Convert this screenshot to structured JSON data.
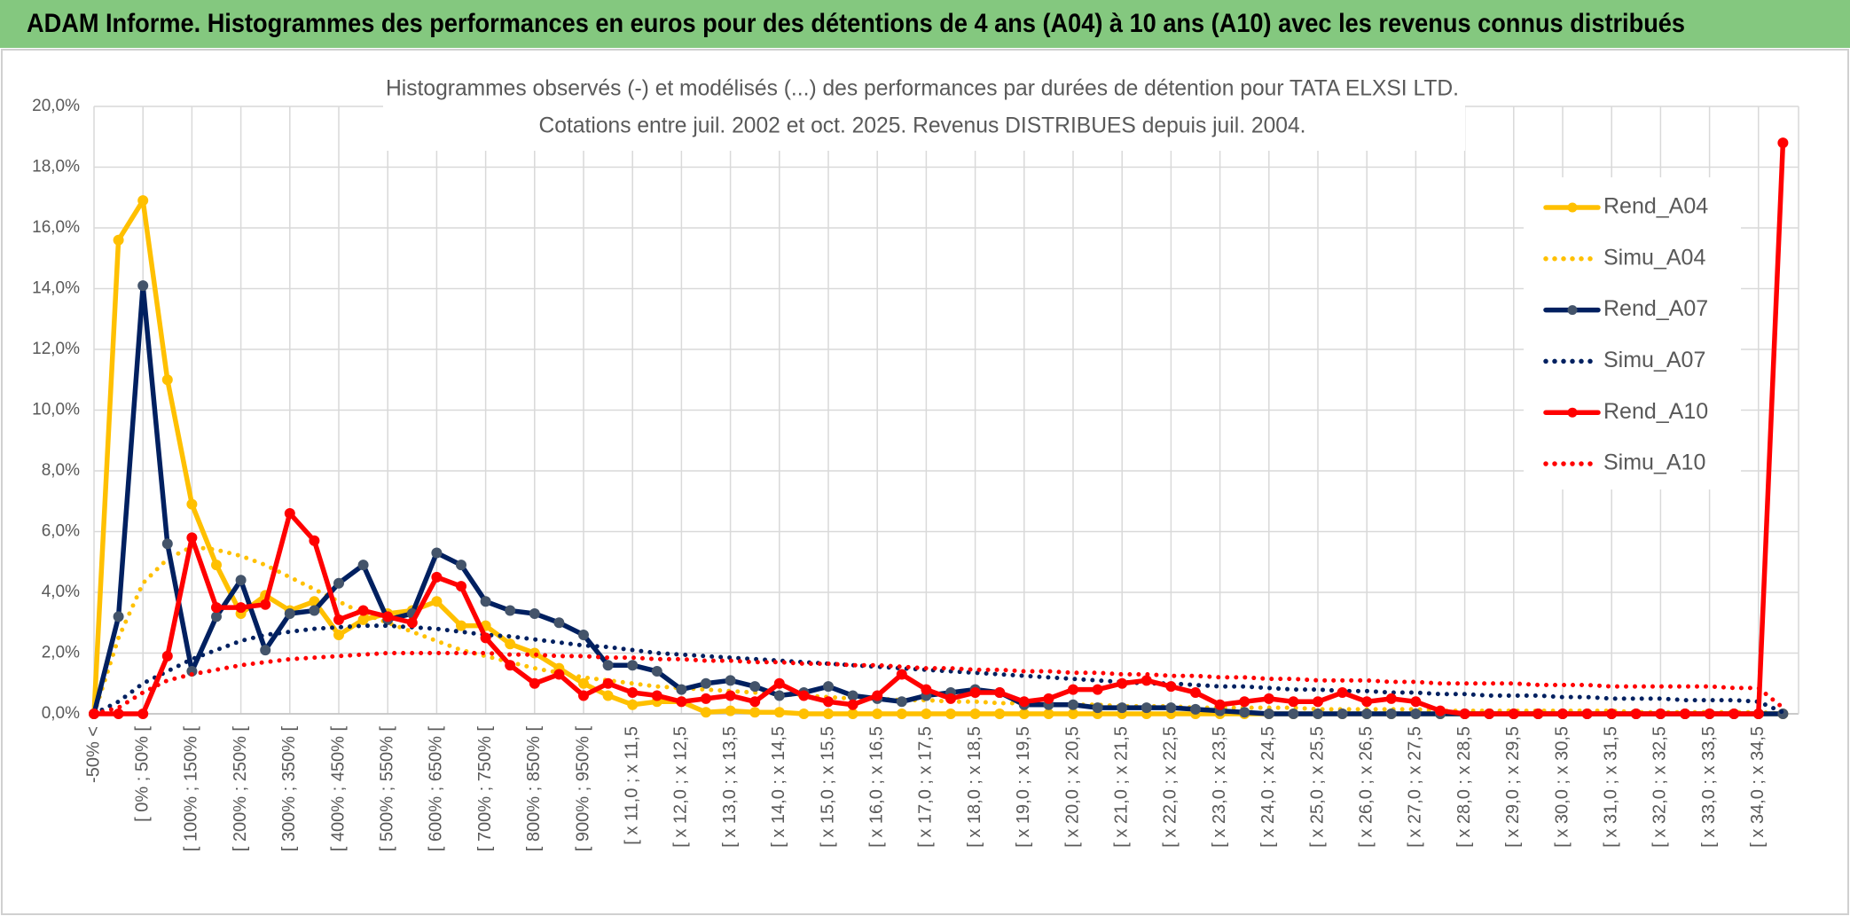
{
  "header": {
    "title": "ADAM Informe. Histogrammes des performances en euros pour des détentions de 4 ans (A04) à 10 ans (A10) avec les revenus connus distribués"
  },
  "chart_data": {
    "type": "line",
    "title": "Histogrammes observés (-) et modélisés (...) des performances par durées de détention pour TATA ELXSI LTD.",
    "subtitle": "Cotations entre juil. 2002 et oct. 2025. Revenus DISTRIBUES depuis juil. 2004.",
    "categories": [
      "-50% <",
      null,
      "[ 0% ; 50% [",
      null,
      "[ 100% ; 150% [",
      null,
      "[ 200% ; 250% [",
      null,
      "[ 300% ; 350% [",
      null,
      "[ 400% ; 450% [",
      null,
      "[ 500% ; 550% [",
      null,
      "[ 600% ; 650% [",
      null,
      "[ 700% ; 750% [",
      null,
      "[ 800% ; 850% [",
      null,
      "[ 900% ; 950% [",
      null,
      "[ x 11,0 ; x 11,5",
      null,
      "[ x 12,0 ; x 12,5",
      null,
      "[ x 13,0 ; x 13,5",
      null,
      "[ x 14,0 ; x 14,5",
      null,
      "[ x 15,0 ; x 15,5",
      null,
      "[ x 16,0 ; x 16,5",
      null,
      "[ x 17,0 ; x 17,5",
      null,
      "[ x 18,0 ; x 18,5",
      null,
      "[ x 19,0 ; x 19,5",
      null,
      "[ x 20,0 ; x 20,5",
      null,
      "[ x 21,0 ; x 21,5",
      null,
      "[ x 22,0 ; x 22,5",
      null,
      "[ x 23,0 ; x 23,5",
      null,
      "[ x 24,0 ; x 24,5",
      null,
      "[ x 25,0 ; x 25,5",
      null,
      "[ x 26,0 ; x 26,5",
      null,
      "[ x 27,0 ; x 27,5",
      null,
      "[ x 28,0 ; x 28,5",
      null,
      "[ x 29,0 ; x 29,5",
      null,
      "[ x 30,0 ; x 30,5",
      null,
      "[ x 31,0 ; x 31,5",
      null,
      "[ x 32,0 ; x 32,5",
      null,
      "[ x 33,0 ; x 33,5",
      null,
      "[ x 34,0 ; x 34,5",
      null
    ],
    "series": [
      {
        "name": "Rend_A04",
        "color": "#ffc000",
        "line_style": "solid",
        "markers": true,
        "values": [
          0,
          15.6,
          16.9,
          11.0,
          6.9,
          4.9,
          3.3,
          3.9,
          3.4,
          3.7,
          2.6,
          3.1,
          3.3,
          3.4,
          3.7,
          2.9,
          2.9,
          2.3,
          2.0,
          1.5,
          1.0,
          0.6,
          0.3,
          0.4,
          0.4,
          0.05,
          0.1,
          0.05,
          0.05,
          0,
          0,
          0,
          0,
          0,
          0,
          0,
          0,
          0,
          0,
          0,
          0,
          0,
          0,
          0,
          0,
          0,
          0,
          0,
          0,
          0,
          0,
          0,
          0,
          0,
          0,
          0,
          0,
          0,
          0,
          0,
          0,
          0,
          0,
          0,
          0,
          0,
          0,
          0,
          0,
          0
        ]
      },
      {
        "name": "Simu_A04",
        "color": "#ffc000",
        "line_style": "dotted",
        "markers": false,
        "values": [
          0,
          2.5,
          4.3,
          5.1,
          5.5,
          5.4,
          5.2,
          4.9,
          4.5,
          4.1,
          3.7,
          3.3,
          3.0,
          2.7,
          2.4,
          2.1,
          1.9,
          1.7,
          1.5,
          1.35,
          1.2,
          1.1,
          1.0,
          0.9,
          0.85,
          0.8,
          0.75,
          0.7,
          0.65,
          0.6,
          0.55,
          0.5,
          0.5,
          0.45,
          0.45,
          0.4,
          0.4,
          0.35,
          0.35,
          0.3,
          0.3,
          0.3,
          0.25,
          0.25,
          0.25,
          0.2,
          0.2,
          0.2,
          0.2,
          0.2,
          0.15,
          0.15,
          0.15,
          0.15,
          0.15,
          0.1,
          0.1,
          0.1,
          0.1,
          0.1,
          0.1,
          0.1,
          0.1,
          0.05,
          0.05,
          0.05,
          0.05,
          0.05,
          0.05,
          0
        ]
      },
      {
        "name": "Rend_A07",
        "color": "#002060",
        "marker_color": "#44546a",
        "line_style": "solid",
        "markers": true,
        "values": [
          0,
          3.2,
          14.1,
          5.6,
          1.4,
          3.2,
          4.4,
          2.1,
          3.3,
          3.4,
          4.3,
          4.9,
          3.1,
          3.3,
          5.3,
          4.9,
          3.7,
          3.4,
          3.3,
          3.0,
          2.6,
          1.6,
          1.6,
          1.4,
          0.8,
          1.0,
          1.1,
          0.9,
          0.6,
          0.7,
          0.9,
          0.6,
          0.5,
          0.4,
          0.6,
          0.7,
          0.8,
          0.7,
          0.3,
          0.3,
          0.3,
          0.2,
          0.2,
          0.2,
          0.2,
          0.15,
          0.1,
          0.05,
          0,
          0,
          0,
          0,
          0,
          0,
          0,
          0,
          0,
          0,
          0,
          0,
          0,
          0,
          0,
          0,
          0,
          0,
          0,
          0,
          0,
          0
        ]
      },
      {
        "name": "Simu_A07",
        "color": "#002060",
        "line_style": "dotted",
        "markers": false,
        "values": [
          0,
          0.4,
          1.0,
          1.4,
          1.8,
          2.1,
          2.4,
          2.6,
          2.7,
          2.8,
          2.85,
          2.9,
          2.9,
          2.85,
          2.8,
          2.7,
          2.6,
          2.55,
          2.45,
          2.35,
          2.25,
          2.2,
          2.1,
          2.0,
          1.95,
          1.9,
          1.85,
          1.8,
          1.75,
          1.7,
          1.65,
          1.6,
          1.55,
          1.5,
          1.45,
          1.4,
          1.35,
          1.3,
          1.25,
          1.2,
          1.15,
          1.1,
          1.05,
          1.0,
          1.0,
          0.95,
          0.9,
          0.9,
          0.85,
          0.8,
          0.8,
          0.75,
          0.75,
          0.7,
          0.7,
          0.65,
          0.65,
          0.6,
          0.6,
          0.6,
          0.55,
          0.55,
          0.5,
          0.5,
          0.5,
          0.45,
          0.45,
          0.45,
          0.4,
          0.05
        ]
      },
      {
        "name": "Rend_A10",
        "color": "#ff0000",
        "line_style": "solid",
        "markers": true,
        "values": [
          0,
          0,
          0,
          1.9,
          5.8,
          3.5,
          3.5,
          3.6,
          6.6,
          5.7,
          3.1,
          3.4,
          3.2,
          3.0,
          4.5,
          4.2,
          2.5,
          1.6,
          1.0,
          1.3,
          0.6,
          1.0,
          0.7,
          0.6,
          0.4,
          0.5,
          0.6,
          0.4,
          1.0,
          0.6,
          0.4,
          0.3,
          0.6,
          1.3,
          0.8,
          0.5,
          0.7,
          0.7,
          0.4,
          0.5,
          0.8,
          0.8,
          1.0,
          1.1,
          0.9,
          0.7,
          0.3,
          0.4,
          0.5,
          0.4,
          0.4,
          0.7,
          0.4,
          0.5,
          0.4,
          0.1,
          0,
          0,
          0,
          0,
          0,
          0,
          0,
          0,
          0,
          0,
          0,
          0,
          0,
          18.8
        ]
      },
      {
        "name": "Simu_A10",
        "color": "#ff0000",
        "line_style": "dotted",
        "markers": false,
        "values": [
          0,
          0.2,
          0.7,
          1.1,
          1.3,
          1.45,
          1.6,
          1.7,
          1.8,
          1.85,
          1.9,
          1.95,
          2.0,
          2.0,
          2.0,
          2.0,
          2.0,
          1.95,
          1.95,
          1.9,
          1.9,
          1.85,
          1.85,
          1.8,
          1.8,
          1.75,
          1.75,
          1.7,
          1.7,
          1.65,
          1.65,
          1.6,
          1.6,
          1.55,
          1.5,
          1.5,
          1.45,
          1.45,
          1.4,
          1.4,
          1.35,
          1.35,
          1.3,
          1.3,
          1.25,
          1.25,
          1.2,
          1.2,
          1.15,
          1.15,
          1.1,
          1.1,
          1.1,
          1.05,
          1.05,
          1.0,
          1.0,
          1.0,
          1.0,
          0.95,
          0.95,
          0.95,
          0.9,
          0.9,
          0.9,
          0.9,
          0.9,
          0.85,
          0.85,
          0.2
        ]
      }
    ],
    "ylim": [
      0,
      20
    ],
    "yticks": [
      {
        "value": 0,
        "label": "0,0%"
      },
      {
        "value": 2,
        "label": "2,0%"
      },
      {
        "value": 4,
        "label": "4,0%"
      },
      {
        "value": 6,
        "label": "6,0%"
      },
      {
        "value": 8,
        "label": "8,0%"
      },
      {
        "value": 10,
        "label": "10,0%"
      },
      {
        "value": 12,
        "label": "12,0%"
      },
      {
        "value": 14,
        "label": "14,0%"
      },
      {
        "value": 16,
        "label": "16,0%"
      },
      {
        "value": 18,
        "label": "18,0%"
      },
      {
        "value": 20,
        "label": "20,0%"
      }
    ],
    "grid": true,
    "legend": "upper right"
  }
}
